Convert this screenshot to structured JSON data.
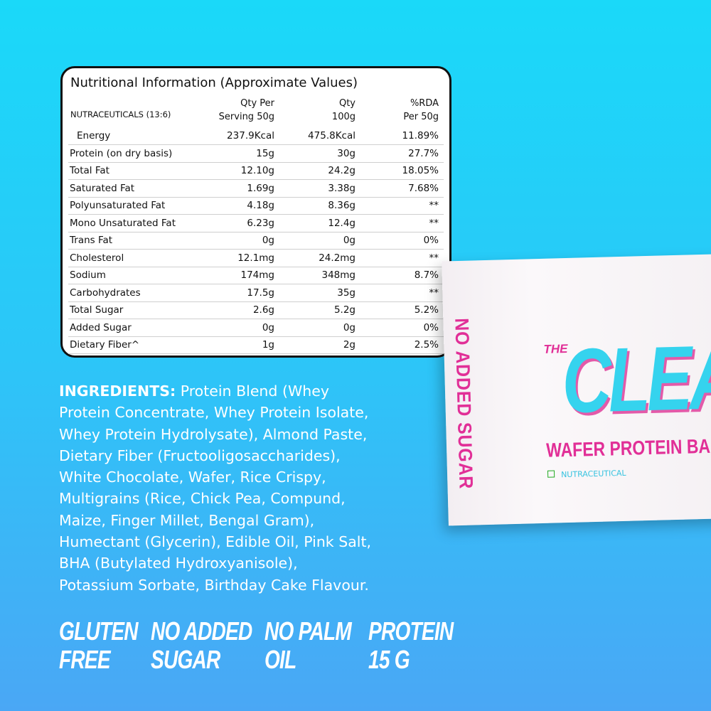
{
  "table": {
    "title": "Nutritional Information (Approximate Values)",
    "columns": [
      [
        "NUTRACEUTICALS (13:6)"
      ],
      [
        "Qty Per",
        "Serving 50g"
      ],
      [
        "Qty",
        "100g"
      ],
      [
        "%RDA",
        "Per 50g"
      ]
    ],
    "rows": [
      [
        "Energy",
        "237.9Kcal",
        "475.8Kcal",
        "11.89%"
      ],
      [
        "Protein (on dry basis)",
        "15g",
        "30g",
        "27.7%"
      ],
      [
        "Total Fat",
        "12.10g",
        "24.2g",
        "18.05%"
      ],
      [
        "Saturated Fat",
        "1.69g",
        "3.38g",
        "7.68%"
      ],
      [
        "Polyunsaturated Fat",
        "4.18g",
        "8.36g",
        "**"
      ],
      [
        "Mono Unsaturated Fat",
        "6.23g",
        "12.4g",
        "**"
      ],
      [
        "Trans Fat",
        "0g",
        "0g",
        "0%"
      ],
      [
        "Cholesterol",
        "12.1mg",
        "24.2mg",
        "**"
      ],
      [
        "Sodium",
        "174mg",
        "348mg",
        "8.7%"
      ],
      [
        "Carbohydrates",
        "17.5g",
        "35g",
        "**"
      ],
      [
        "Total Sugar",
        "2.6g",
        "5.2g",
        "5.2%"
      ],
      [
        "Added Sugar",
        "0g",
        "0g",
        "0%"
      ],
      [
        "Dietary Fiber^",
        "1g",
        "2g",
        "2.5%"
      ]
    ]
  },
  "ingredients": {
    "label": "INGREDIENTS:",
    "lines": [
      "Protein Blend (Whey",
      "Protein Concentrate, Whey Protein Isolate,",
      "Whey Protein Hydrolysate), Almond Paste,",
      "Dietary Fiber (Fructooligosaccharides),",
      "White Chocolate, Wafer, Rice Crispy,",
      "Multigrains (Rice, Chick Pea, Compund,",
      "Maize, Finger Millet, Bengal Gram),",
      "Humectant (Glycerin), Edible Oil, Pink Salt,",
      "BHA (Butylated Hydroxyanisole),",
      "Potassium Sorbate, Birthday Cake Flavour."
    ]
  },
  "badges": [
    [
      "GLUTEN",
      "FREE"
    ],
    [
      "NO ADDED",
      "SUGAR"
    ],
    [
      "NO PALM",
      "OIL"
    ],
    [
      "PROTEIN",
      "15 G"
    ]
  ],
  "product": {
    "side_text": "NO ADDED SUGAR",
    "prefix": "THE",
    "brand": "CLEA",
    "subtitle": "WAFER PROTEIN BA",
    "tag": "NUTRACEUTICAL"
  }
}
